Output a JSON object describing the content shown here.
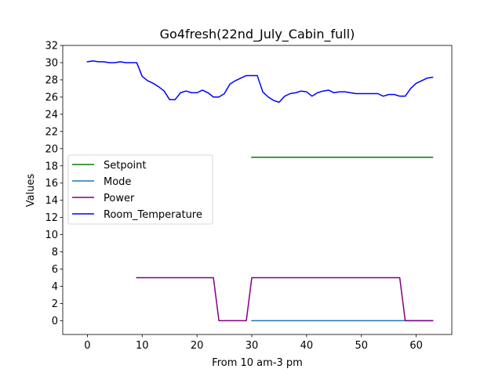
{
  "chart_data": {
    "type": "line",
    "title": "Go4fresh(22nd_July_Cabin_full)",
    "xlabel": "From 10 am-3 pm",
    "ylabel": "Values",
    "xlim": [
      -4.5,
      66.5
    ],
    "ylim": [
      -1.6,
      32
    ],
    "xticks": [
      0,
      10,
      20,
      30,
      40,
      50,
      60
    ],
    "yticks": [
      0,
      2,
      4,
      6,
      8,
      10,
      12,
      14,
      16,
      18,
      20,
      22,
      24,
      26,
      28,
      30,
      32
    ],
    "grid": false,
    "legend_position": "center-left",
    "series": [
      {
        "name": "Setpoint",
        "color": "#008000",
        "x": [
          30,
          63
        ],
        "y": [
          19,
          19
        ]
      },
      {
        "name": "Mode",
        "color": "#1f77b4",
        "x": [
          30,
          63
        ],
        "y": [
          0,
          0
        ]
      },
      {
        "name": "Power",
        "color": "#800080",
        "x": [
          9,
          23,
          24,
          29,
          30,
          57,
          58,
          63
        ],
        "y": [
          5,
          5,
          0,
          0,
          5,
          5,
          0,
          0
        ]
      },
      {
        "name": "Room_Temperature",
        "color": "#0000ff",
        "x": [
          0,
          1,
          2,
          3,
          4,
          5,
          6,
          7,
          8,
          9,
          10,
          11,
          12,
          13,
          14,
          15,
          16,
          17,
          18,
          19,
          20,
          21,
          22,
          23,
          24,
          25,
          26,
          27,
          28,
          29,
          30,
          31,
          32,
          33,
          34,
          35,
          36,
          37,
          38,
          39,
          40,
          41,
          42,
          43,
          44,
          45,
          46,
          47,
          48,
          49,
          50,
          51,
          52,
          53,
          54,
          55,
          56,
          57,
          58,
          59,
          60,
          61,
          62,
          63
        ],
        "y": [
          30.1,
          30.2,
          30.1,
          30.1,
          30.0,
          30.0,
          30.1,
          30.0,
          30.0,
          30.0,
          28.4,
          27.9,
          27.6,
          27.2,
          26.7,
          25.7,
          25.7,
          26.5,
          26.7,
          26.5,
          26.5,
          26.8,
          26.5,
          26.0,
          26.0,
          26.4,
          27.5,
          27.9,
          28.2,
          28.5,
          28.5,
          28.5,
          26.6,
          26.0,
          25.6,
          25.4,
          26.1,
          26.4,
          26.5,
          26.7,
          26.6,
          26.1,
          26.5,
          26.7,
          26.8,
          26.5,
          26.6,
          26.6,
          26.5,
          26.4,
          26.4,
          26.4,
          26.4,
          26.4,
          26.1,
          26.3,
          26.3,
          26.1,
          26.1,
          27.0,
          27.6,
          27.9,
          28.2,
          28.3
        ]
      }
    ]
  }
}
